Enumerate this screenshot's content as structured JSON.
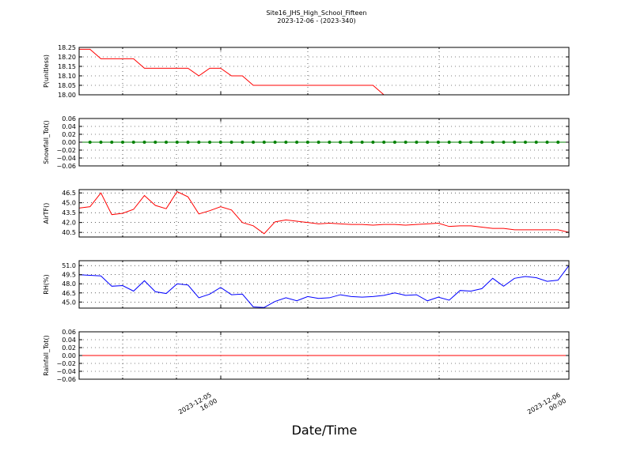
{
  "figure": {
    "title": "Site16_JHS_High_School_Fifteen",
    "subtitle": "2023-12-06 - (2023-340)",
    "xlabel": "Date/Time",
    "x_tick_labels": [
      {
        "line1": "2023-12-05",
        "line2": "16:00"
      },
      {
        "line1": "2023-12-06",
        "line2": "00:00"
      }
    ]
  },
  "chart_data": [
    {
      "type": "line",
      "ylabel": "P(unitless)",
      "ylim": [
        18.0,
        18.25
      ],
      "yticks": [
        "18.00",
        "18.05",
        "18.10",
        "18.15",
        "18.20",
        "18.25"
      ],
      "grid": true,
      "series": [
        {
          "color": "#ff0000",
          "marker": false,
          "values": [
            18.24,
            18.24,
            18.19,
            18.19,
            18.19,
            18.19,
            18.14,
            18.14,
            18.14,
            18.14,
            18.14,
            18.1,
            18.14,
            18.14,
            18.1,
            18.1,
            18.05,
            18.05,
            18.05,
            18.05,
            18.05,
            18.05,
            18.05,
            18.05,
            18.05,
            18.05,
            18.05,
            18.05,
            18.0,
            18.0,
            18.0,
            18.0,
            18.0,
            18.0,
            18.0,
            18.0,
            18.0,
            18.0,
            18.0,
            18.0,
            18.0,
            18.0,
            18.0,
            18.0,
            18.0,
            18.0
          ]
        }
      ]
    },
    {
      "type": "line",
      "ylabel": "Snowfall_Tot()",
      "ylim": [
        -0.06,
        0.06
      ],
      "yticks": [
        "−0.06",
        "−0.04",
        "−0.02",
        "0.00",
        "0.02",
        "0.04",
        "0.06"
      ],
      "grid": true,
      "series": [
        {
          "color": "#008000",
          "marker": true,
          "values": [
            0,
            0,
            0,
            0,
            0,
            0,
            0,
            0,
            0,
            0,
            0,
            0,
            0,
            0,
            0,
            0,
            0,
            0,
            0,
            0,
            0,
            0,
            0,
            0,
            0,
            0,
            0,
            0,
            0,
            0,
            0,
            0,
            0,
            0,
            0,
            0,
            0,
            0,
            0,
            0,
            0,
            0,
            0,
            0,
            0,
            0
          ]
        }
      ]
    },
    {
      "type": "line",
      "ylabel": "AirTF()",
      "ylim": [
        39.8,
        47.0
      ],
      "yticks": [
        "40.5",
        "42.0",
        "43.5",
        "45.0",
        "46.5"
      ],
      "grid": true,
      "series": [
        {
          "color": "#ff0000",
          "marker": false,
          "values": [
            44.2,
            44.4,
            46.5,
            43.2,
            43.4,
            44.0,
            46.1,
            44.6,
            44.1,
            46.7,
            45.9,
            43.3,
            43.8,
            44.4,
            43.9,
            42.0,
            41.5,
            40.3,
            42.1,
            42.4,
            42.2,
            42.0,
            41.8,
            41.9,
            41.8,
            41.7,
            41.7,
            41.6,
            41.7,
            41.7,
            41.6,
            41.7,
            41.8,
            41.9,
            41.4,
            41.5,
            41.5,
            41.3,
            41.1,
            41.1,
            40.9,
            40.9,
            40.9,
            40.9,
            40.9,
            40.5
          ]
        }
      ]
    },
    {
      "type": "line",
      "ylabel": "RH(%)",
      "ylim": [
        44.0,
        51.8
      ],
      "yticks": [
        "45.0",
        "46.5",
        "48.0",
        "49.5",
        "51.0"
      ],
      "grid": true,
      "series": [
        {
          "color": "#0000ff",
          "marker": false,
          "values": [
            49.5,
            49.4,
            49.3,
            47.6,
            47.7,
            46.8,
            48.5,
            46.7,
            46.4,
            48.0,
            47.8,
            45.7,
            46.3,
            47.4,
            46.2,
            46.3,
            44.2,
            44.1,
            45.1,
            45.7,
            45.2,
            45.9,
            45.6,
            45.7,
            46.2,
            45.9,
            45.8,
            45.9,
            46.1,
            46.5,
            46.1,
            46.2,
            45.2,
            45.8,
            45.3,
            46.9,
            46.8,
            47.2,
            48.9,
            47.6,
            48.9,
            49.2,
            49.0,
            48.4,
            48.6,
            51.0
          ]
        }
      ]
    },
    {
      "type": "line",
      "ylabel": "Rainfall_Tot()",
      "ylim": [
        -0.06,
        0.06
      ],
      "yticks": [
        "−0.06",
        "−0.04",
        "−0.02",
        "0.00",
        "0.02",
        "0.04",
        "0.06"
      ],
      "grid": true,
      "series": [
        {
          "color": "#ff0000",
          "marker": false,
          "values": [
            0,
            0,
            0,
            0,
            0,
            0,
            0,
            0,
            0,
            0,
            0,
            0,
            0,
            0,
            0,
            0,
            0,
            0,
            0,
            0,
            0,
            0,
            0,
            0,
            0,
            0,
            0,
            0,
            0,
            0,
            0,
            0,
            0,
            0,
            0,
            0,
            0,
            0,
            0,
            0,
            0,
            0,
            0,
            0,
            0,
            0
          ]
        }
      ]
    }
  ]
}
